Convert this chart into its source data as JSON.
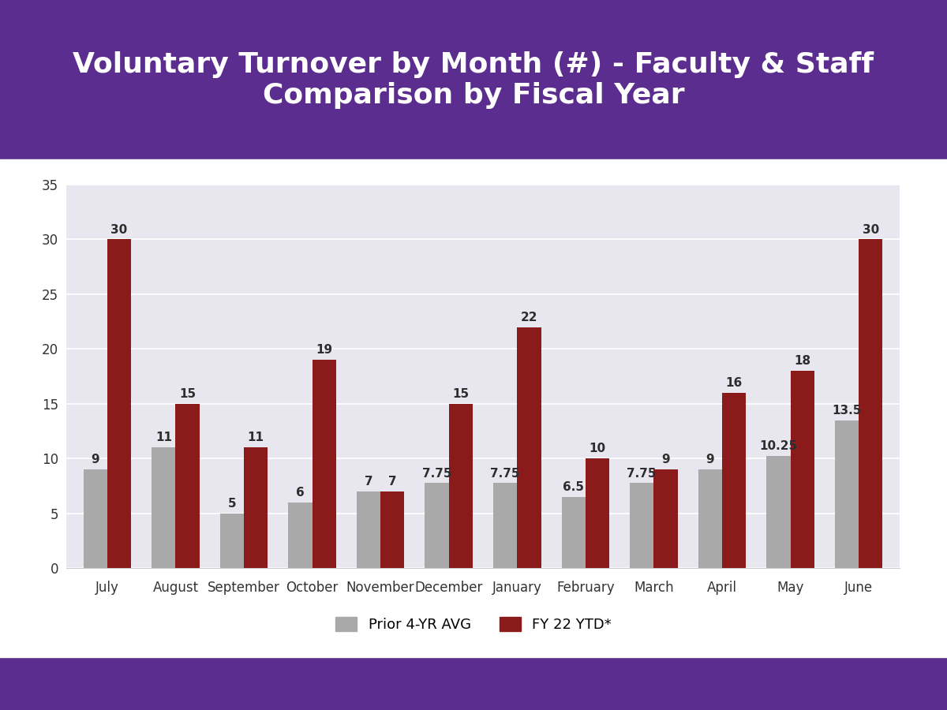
{
  "title": "Voluntary Turnover by Month (#) - Faculty & Staff\nComparison by Fiscal Year",
  "months": [
    "July",
    "August",
    "September",
    "October",
    "November",
    "December",
    "January",
    "February",
    "March",
    "April",
    "May",
    "June"
  ],
  "prior_avg": [
    9,
    11,
    5,
    6,
    7,
    7.75,
    7.75,
    6.5,
    7.75,
    9,
    10.25,
    13.5
  ],
  "fy22": [
    30,
    15,
    11,
    19,
    7,
    15,
    22,
    10,
    9,
    16,
    18,
    30
  ],
  "prior_color": "#A9A9A9",
  "fy22_color": "#8B1A1A",
  "chart_bg_color": "#E8E6EF",
  "header_color": "#5B2D8E",
  "footer_color": "#5B2D8E",
  "white_area_color": "#FFFFFF",
  "title_color": "#FFFFFF",
  "ylim": [
    0,
    35
  ],
  "yticks": [
    0,
    5,
    10,
    15,
    20,
    25,
    30,
    35
  ],
  "legend_prior": "Prior 4-YR AVG",
  "legend_fy22": "FY 22 YTD*",
  "bar_width": 0.35,
  "title_fontsize": 26,
  "tick_fontsize": 12,
  "legend_fontsize": 13,
  "value_fontsize": 11,
  "grid_color": "#FFFFFF"
}
